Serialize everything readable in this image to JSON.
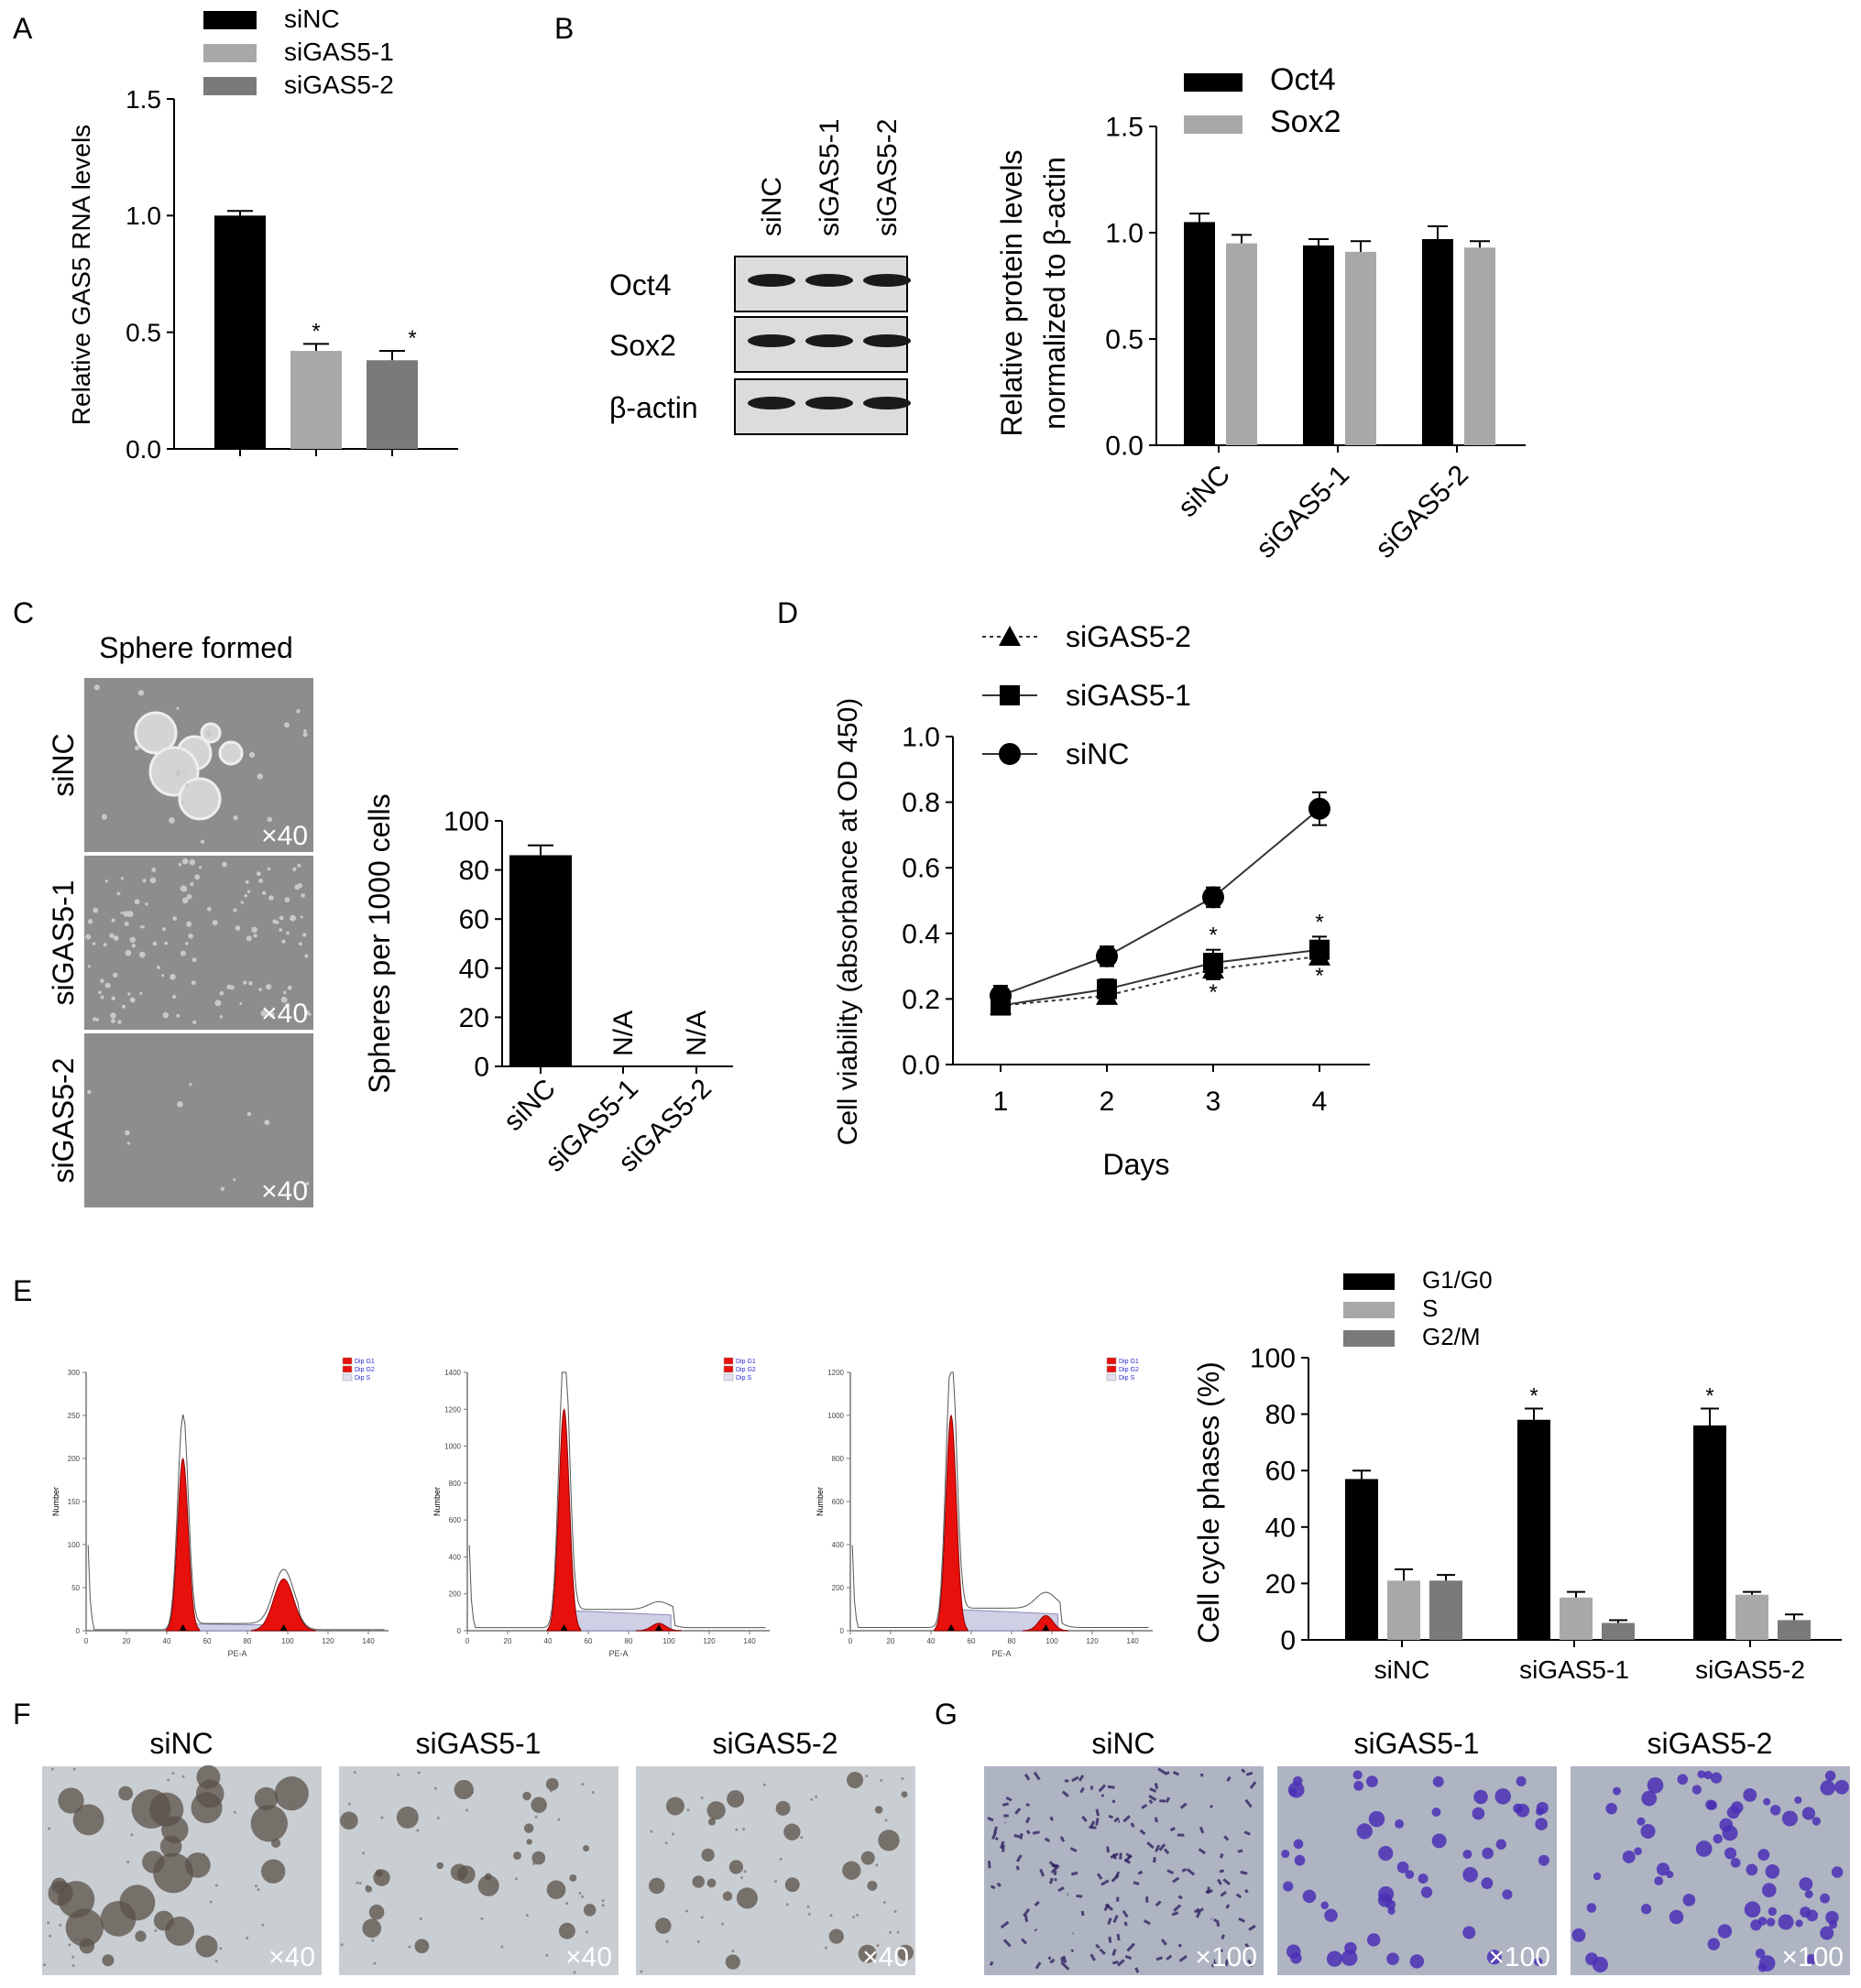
{
  "panel_letters": [
    "A",
    "B",
    "C",
    "D",
    "E",
    "F",
    "G"
  ],
  "colors": {
    "black": "#000000",
    "light_gray": "#a8a8a8",
    "mid_gray": "#7a7a7a",
    "red": "#e8100c",
    "lavender": "#cfcfe6",
    "micro_bg": "#8d8d8d",
    "sphere_bg": "#c9ced3",
    "stain_bg": "#aeb4c2",
    "stain": "#4a2fb5"
  },
  "western_blot": {
    "lanes": [
      "siNC",
      "siGAS5-1",
      "siGAS5-2"
    ],
    "rows": [
      "Oct4",
      "Sox2",
      "β-actin"
    ]
  },
  "micrographs": {
    "c_title": "Sphere formed",
    "c_rows": [
      "siNC",
      "siGAS5-1",
      "siGAS5-2"
    ],
    "c_mag": "×40",
    "f_titles": [
      "siNC",
      "siGAS5-1",
      "siGAS5-2"
    ],
    "f_mag": "×40",
    "g_titles": [
      "siNC",
      "siGAS5-1",
      "siGAS5-2"
    ],
    "g_mag": "×100"
  },
  "flow_cytometry": {
    "legend": [
      "Dip G1",
      "Dip G2",
      "Dip S"
    ],
    "xlabel": "PE-A",
    "ylabel": "Number",
    "x_ticks": [
      "0",
      "20",
      "40",
      "60",
      "80",
      "100",
      "120",
      "140"
    ],
    "histograms": [
      {
        "ylim": [
          0,
          300
        ],
        "y_ticks": [
          "0",
          "50",
          "100",
          "150",
          "200",
          "250",
          "300"
        ],
        "g1_peak": 200,
        "g2_peak": 60,
        "g1_pos": 48,
        "g2_pos": 98,
        "s_level": 8
      },
      {
        "ylim": [
          0,
          1400
        ],
        "y_ticks": [
          "0",
          "200",
          "400",
          "600",
          "800",
          "1000",
          "1200",
          "1400"
        ],
        "g1_peak": 1200,
        "g2_peak": 40,
        "g1_pos": 48,
        "g2_pos": 95,
        "s_level": 110
      },
      {
        "ylim": [
          0,
          1200
        ],
        "y_ticks": [
          "0",
          "200",
          "400",
          "600",
          "800",
          "1000",
          "1200"
        ],
        "g1_peak": 1000,
        "g2_peak": 70,
        "g1_pos": 50,
        "g2_pos": 97,
        "s_level": 100
      }
    ]
  },
  "chart_data": [
    {
      "panel": "A",
      "type": "bar",
      "categories": [
        "siNC",
        "siGAS5-1",
        "siGAS5-2"
      ],
      "values": [
        1.0,
        0.42,
        0.38
      ],
      "errors": [
        0.02,
        0.03,
        0.04
      ],
      "significant": [
        false,
        true,
        true
      ],
      "legend": [
        "siNC",
        "siGAS5-1",
        "siGAS5-2"
      ],
      "ylabel": "Relative GAS5 RNA levels",
      "ylim": [
        0,
        1.5
      ],
      "y_ticks": [
        "0.0",
        "0.5",
        "1.0",
        "1.5"
      ]
    },
    {
      "panel": "B",
      "type": "bar",
      "categories": [
        "siNC",
        "siGAS5-1",
        "siGAS5-2"
      ],
      "series": [
        {
          "name": "Oct4",
          "values": [
            1.05,
            0.94,
            0.97
          ],
          "errors": [
            0.04,
            0.03,
            0.06
          ]
        },
        {
          "name": "Sox2",
          "values": [
            0.95,
            0.91,
            0.93
          ],
          "errors": [
            0.04,
            0.05,
            0.03
          ]
        }
      ],
      "ylabel_lines": [
        "Relative protein levels",
        "normalized to β-actin"
      ],
      "ylim": [
        0,
        1.5
      ],
      "y_ticks": [
        "0.0",
        "0.5",
        "1.0",
        "1.5"
      ]
    },
    {
      "panel": "C",
      "type": "bar",
      "categories": [
        "siNC",
        "siGAS5-1",
        "siGAS5-2"
      ],
      "values": [
        86,
        null,
        null
      ],
      "errors": [
        4,
        null,
        null
      ],
      "na_label": "N/A",
      "ylabel": "Spheres per 1000 cells",
      "ylim": [
        0,
        100
      ],
      "y_ticks": [
        "0",
        "20",
        "40",
        "60",
        "80",
        "100"
      ]
    },
    {
      "panel": "D",
      "type": "line",
      "x": [
        1,
        2,
        3,
        4
      ],
      "x_ticks": [
        "1",
        "2",
        "3",
        "4"
      ],
      "series": [
        {
          "name": "siGAS5-2",
          "marker": "triangle",
          "dashed": true,
          "values": [
            0.18,
            0.21,
            0.29,
            0.33
          ],
          "errors": [
            0.02,
            0.02,
            0.03,
            0.02
          ],
          "significant": [
            false,
            false,
            true,
            true
          ]
        },
        {
          "name": "siGAS5-1",
          "marker": "square",
          "dashed": false,
          "values": [
            0.18,
            0.23,
            0.31,
            0.35
          ],
          "errors": [
            0.02,
            0.03,
            0.04,
            0.04
          ],
          "significant": [
            false,
            false,
            true,
            true
          ]
        },
        {
          "name": "siNC",
          "marker": "circle",
          "dashed": false,
          "values": [
            0.21,
            0.33,
            0.51,
            0.78
          ],
          "errors": [
            0.03,
            0.03,
            0.03,
            0.05
          ],
          "significant": [
            false,
            false,
            false,
            false
          ]
        }
      ],
      "xlabel": "Days",
      "ylabel": "Cell viability (absorbance at OD 450)",
      "ylim": [
        0,
        1.0
      ],
      "y_ticks": [
        "0.0",
        "0.2",
        "0.4",
        "0.6",
        "0.8",
        "1.0"
      ]
    },
    {
      "panel": "E",
      "type": "bar",
      "categories": [
        "siNC",
        "siGAS5-1",
        "siGAS5-2"
      ],
      "series": [
        {
          "name": "G1/G0",
          "values": [
            57,
            78,
            76
          ],
          "errors": [
            3,
            4,
            6
          ],
          "significant": [
            false,
            true,
            true
          ]
        },
        {
          "name": "S",
          "values": [
            21,
            15,
            16
          ],
          "errors": [
            4,
            2,
            1
          ],
          "significant": [
            false,
            false,
            false
          ]
        },
        {
          "name": "G2/M",
          "values": [
            21,
            6,
            7
          ],
          "errors": [
            2,
            1,
            2
          ],
          "significant": [
            false,
            false,
            false
          ]
        }
      ],
      "ylabel": "Cell cycle phases (%)",
      "ylim": [
        0,
        100
      ],
      "y_ticks": [
        "0",
        "20",
        "40",
        "60",
        "80",
        "100"
      ]
    }
  ]
}
